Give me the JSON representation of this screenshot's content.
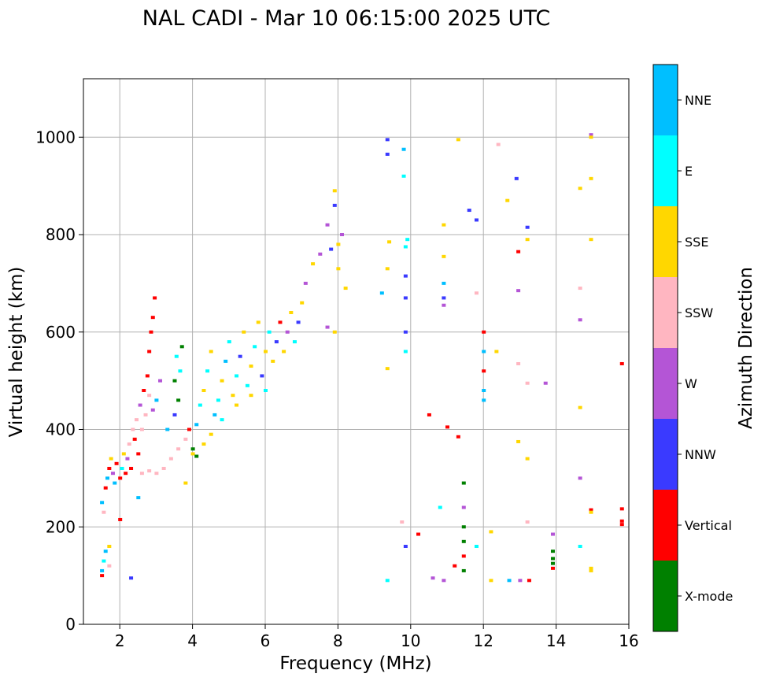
{
  "chart_data": {
    "type": "scatter",
    "title": "NAL CADI - Mar 10 06:15:00 2025 UTC",
    "xlabel": "Frequency (MHz)",
    "ylabel": "Virtual height (km)",
    "xlim": [
      1.0,
      16.0
    ],
    "ylim": [
      0,
      1120
    ],
    "xticks": [
      2,
      4,
      6,
      8,
      10,
      12,
      14,
      16
    ],
    "yticks": [
      0,
      200,
      400,
      600,
      800,
      1000
    ],
    "grid": true,
    "colorbar": {
      "label": "Azimuth Direction",
      "categories": [
        {
          "name": "X-mode",
          "color": "#008000"
        },
        {
          "name": "Vertical",
          "color": "#ff0000"
        },
        {
          "name": "NNW",
          "color": "#3a3aff"
        },
        {
          "name": "W",
          "color": "#b455d6"
        },
        {
          "name": "SSW",
          "color": "#ffb6c1"
        },
        {
          "name": "SSE",
          "color": "#ffd700"
        },
        {
          "name": "E",
          "color": "#00ffff"
        },
        {
          "name": "NNE",
          "color": "#00bfff"
        }
      ]
    },
    "points": [
      {
        "f": 1.5,
        "h": 100,
        "c": "Vertical"
      },
      {
        "f": 1.5,
        "h": 110,
        "c": "NNE"
      },
      {
        "f": 1.55,
        "h": 130,
        "c": "E"
      },
      {
        "f": 1.6,
        "h": 150,
        "c": "NNE"
      },
      {
        "f": 1.7,
        "h": 160,
        "c": "SSE"
      },
      {
        "f": 1.7,
        "h": 120,
        "c": "SSW"
      },
      {
        "f": 1.5,
        "h": 250,
        "c": "NNE"
      },
      {
        "f": 1.55,
        "h": 230,
        "c": "SSW"
      },
      {
        "f": 1.6,
        "h": 280,
        "c": "Vertical"
      },
      {
        "f": 1.65,
        "h": 300,
        "c": "NNE"
      },
      {
        "f": 1.7,
        "h": 320,
        "c": "Vertical"
      },
      {
        "f": 1.75,
        "h": 340,
        "c": "SSE"
      },
      {
        "f": 1.8,
        "h": 310,
        "c": "W"
      },
      {
        "f": 1.85,
        "h": 290,
        "c": "NNE"
      },
      {
        "f": 1.9,
        "h": 330,
        "c": "Vertical"
      },
      {
        "f": 2.0,
        "h": 300,
        "c": "Vertical"
      },
      {
        "f": 2.05,
        "h": 320,
        "c": "E"
      },
      {
        "f": 2.1,
        "h": 350,
        "c": "SSE"
      },
      {
        "f": 2.15,
        "h": 310,
        "c": "Vertical"
      },
      {
        "f": 2.2,
        "h": 340,
        "c": "W"
      },
      {
        "f": 2.25,
        "h": 370,
        "c": "SSW"
      },
      {
        "f": 2.3,
        "h": 320,
        "c": "Vertical"
      },
      {
        "f": 2.35,
        "h": 400,
        "c": "SSW"
      },
      {
        "f": 2.4,
        "h": 380,
        "c": "Vertical"
      },
      {
        "f": 2.45,
        "h": 420,
        "c": "SSW"
      },
      {
        "f": 2.5,
        "h": 350,
        "c": "Vertical"
      },
      {
        "f": 2.55,
        "h": 450,
        "c": "W"
      },
      {
        "f": 2.6,
        "h": 400,
        "c": "SSW"
      },
      {
        "f": 2.65,
        "h": 480,
        "c": "Vertical"
      },
      {
        "f": 2.7,
        "h": 430,
        "c": "SSW"
      },
      {
        "f": 2.75,
        "h": 510,
        "c": "Vertical"
      },
      {
        "f": 2.8,
        "h": 560,
        "c": "Vertical"
      },
      {
        "f": 2.85,
        "h": 600,
        "c": "Vertical"
      },
      {
        "f": 2.9,
        "h": 630,
        "c": "Vertical"
      },
      {
        "f": 2.95,
        "h": 670,
        "c": "Vertical"
      },
      {
        "f": 2.8,
        "h": 470,
        "c": "SSW"
      },
      {
        "f": 2.9,
        "h": 440,
        "c": "W"
      },
      {
        "f": 3.0,
        "h": 460,
        "c": "NNE"
      },
      {
        "f": 3.1,
        "h": 500,
        "c": "W"
      },
      {
        "f": 3.0,
        "h": 310,
        "c": "SSW"
      },
      {
        "f": 3.2,
        "h": 320,
        "c": "SSW"
      },
      {
        "f": 3.4,
        "h": 340,
        "c": "SSW"
      },
      {
        "f": 3.6,
        "h": 360,
        "c": "SSW"
      },
      {
        "f": 3.8,
        "h": 380,
        "c": "SSW"
      },
      {
        "f": 2.6,
        "h": 310,
        "c": "SSW"
      },
      {
        "f": 2.8,
        "h": 315,
        "c": "SSW"
      },
      {
        "f": 3.3,
        "h": 400,
        "c": "NNE"
      },
      {
        "f": 3.5,
        "h": 430,
        "c": "NNW"
      },
      {
        "f": 3.6,
        "h": 460,
        "c": "X-mode"
      },
      {
        "f": 3.5,
        "h": 500,
        "c": "X-mode"
      },
      {
        "f": 3.7,
        "h": 570,
        "c": "X-mode"
      },
      {
        "f": 3.65,
        "h": 520,
        "c": "E"
      },
      {
        "f": 3.55,
        "h": 550,
        "c": "E"
      },
      {
        "f": 3.8,
        "h": 290,
        "c": "SSE"
      },
      {
        "f": 3.9,
        "h": 400,
        "c": "Vertical"
      },
      {
        "f": 4.0,
        "h": 360,
        "c": "X-mode"
      },
      {
        "f": 4.1,
        "h": 410,
        "c": "NNE"
      },
      {
        "f": 4.2,
        "h": 450,
        "c": "E"
      },
      {
        "f": 4.3,
        "h": 480,
        "c": "SSE"
      },
      {
        "f": 4.4,
        "h": 520,
        "c": "E"
      },
      {
        "f": 4.5,
        "h": 560,
        "c": "SSE"
      },
      {
        "f": 4.6,
        "h": 430,
        "c": "NNE"
      },
      {
        "f": 4.7,
        "h": 460,
        "c": "E"
      },
      {
        "f": 4.8,
        "h": 500,
        "c": "SSE"
      },
      {
        "f": 4.9,
        "h": 540,
        "c": "NNE"
      },
      {
        "f": 5.0,
        "h": 580,
        "c": "E"
      },
      {
        "f": 5.1,
        "h": 470,
        "c": "SSE"
      },
      {
        "f": 5.2,
        "h": 510,
        "c": "E"
      },
      {
        "f": 5.3,
        "h": 550,
        "c": "NNW"
      },
      {
        "f": 5.4,
        "h": 600,
        "c": "SSE"
      },
      {
        "f": 5.5,
        "h": 490,
        "c": "E"
      },
      {
        "f": 5.6,
        "h": 530,
        "c": "SSE"
      },
      {
        "f": 5.7,
        "h": 570,
        "c": "E"
      },
      {
        "f": 5.8,
        "h": 620,
        "c": "SSE"
      },
      {
        "f": 5.9,
        "h": 510,
        "c": "NNW"
      },
      {
        "f": 6.0,
        "h": 560,
        "c": "SSE"
      },
      {
        "f": 6.1,
        "h": 600,
        "c": "E"
      },
      {
        "f": 6.2,
        "h": 540,
        "c": "SSE"
      },
      {
        "f": 6.3,
        "h": 580,
        "c": "NNW"
      },
      {
        "f": 6.4,
        "h": 620,
        "c": "Vertical"
      },
      {
        "f": 6.5,
        "h": 560,
        "c": "SSE"
      },
      {
        "f": 6.6,
        "h": 600,
        "c": "W"
      },
      {
        "f": 6.7,
        "h": 640,
        "c": "SSE"
      },
      {
        "f": 6.8,
        "h": 580,
        "c": "E"
      },
      {
        "f": 6.9,
        "h": 620,
        "c": "NNW"
      },
      {
        "f": 7.0,
        "h": 660,
        "c": "SSE"
      },
      {
        "f": 7.1,
        "h": 700,
        "c": "W"
      },
      {
        "f": 7.3,
        "h": 740,
        "c": "SSE"
      },
      {
        "f": 7.5,
        "h": 760,
        "c": "W"
      },
      {
        "f": 7.7,
        "h": 820,
        "c": "W"
      },
      {
        "f": 7.8,
        "h": 770,
        "c": "NNW"
      },
      {
        "f": 7.9,
        "h": 860,
        "c": "NNW"
      },
      {
        "f": 7.9,
        "h": 890,
        "c": "SSE"
      },
      {
        "f": 8.0,
        "h": 780,
        "c": "SSE"
      },
      {
        "f": 8.1,
        "h": 800,
        "c": "W"
      },
      {
        "f": 8.0,
        "h": 730,
        "c": "SSE"
      },
      {
        "f": 8.2,
        "h": 690,
        "c": "SSE"
      },
      {
        "f": 7.9,
        "h": 600,
        "c": "SSE"
      },
      {
        "f": 7.7,
        "h": 610,
        "c": "W"
      },
      {
        "f": 4.5,
        "h": 390,
        "c": "SSE"
      },
      {
        "f": 4.8,
        "h": 420,
        "c": "E"
      },
      {
        "f": 5.2,
        "h": 450,
        "c": "SSE"
      },
      {
        "f": 5.6,
        "h": 470,
        "c": "SSE"
      },
      {
        "f": 6.0,
        "h": 480,
        "c": "E"
      },
      {
        "f": 4.3,
        "h": 370,
        "c": "SSE"
      },
      {
        "f": 4.0,
        "h": 350,
        "c": "SSE"
      },
      {
        "f": 4.1,
        "h": 345,
        "c": "X-mode"
      },
      {
        "f": 2.3,
        "h": 95,
        "c": "NNW"
      },
      {
        "f": 2.5,
        "h": 260,
        "c": "NNE"
      },
      {
        "f": 2.0,
        "h": 215,
        "c": "Vertical"
      },
      {
        "f": 9.2,
        "h": 680,
        "c": "NNE"
      },
      {
        "f": 9.35,
        "h": 995,
        "c": "NNW"
      },
      {
        "f": 9.35,
        "h": 965,
        "c": "NNW"
      },
      {
        "f": 9.4,
        "h": 785,
        "c": "SSE"
      },
      {
        "f": 9.35,
        "h": 730,
        "c": "SSE"
      },
      {
        "f": 9.35,
        "h": 525,
        "c": "SSE"
      },
      {
        "f": 9.35,
        "h": 90,
        "c": "E"
      },
      {
        "f": 9.8,
        "h": 975,
        "c": "NNE"
      },
      {
        "f": 9.8,
        "h": 920,
        "c": "E"
      },
      {
        "f": 9.9,
        "h": 790,
        "c": "E"
      },
      {
        "f": 9.85,
        "h": 775,
        "c": "E"
      },
      {
        "f": 9.85,
        "h": 715,
        "c": "NNW"
      },
      {
        "f": 9.85,
        "h": 670,
        "c": "NNW"
      },
      {
        "f": 9.85,
        "h": 600,
        "c": "NNW"
      },
      {
        "f": 9.85,
        "h": 560,
        "c": "E"
      },
      {
        "f": 9.75,
        "h": 210,
        "c": "SSW"
      },
      {
        "f": 9.85,
        "h": 160,
        "c": "NNW"
      },
      {
        "f": 10.2,
        "h": 185,
        "c": "Vertical"
      },
      {
        "f": 10.5,
        "h": 430,
        "c": "Vertical"
      },
      {
        "f": 10.6,
        "h": 95,
        "c": "W"
      },
      {
        "f": 10.8,
        "h": 240,
        "c": "E"
      },
      {
        "f": 10.9,
        "h": 90,
        "c": "W"
      },
      {
        "f": 10.9,
        "h": 820,
        "c": "SSE"
      },
      {
        "f": 10.9,
        "h": 755,
        "c": "SSE"
      },
      {
        "f": 10.9,
        "h": 700,
        "c": "NNE"
      },
      {
        "f": 10.9,
        "h": 670,
        "c": "NNW"
      },
      {
        "f": 10.9,
        "h": 655,
        "c": "W"
      },
      {
        "f": 11.0,
        "h": 405,
        "c": "Vertical"
      },
      {
        "f": 11.2,
        "h": 120,
        "c": "Vertical"
      },
      {
        "f": 11.3,
        "h": 995,
        "c": "SSE"
      },
      {
        "f": 11.3,
        "h": 385,
        "c": "Vertical"
      },
      {
        "f": 11.45,
        "h": 290,
        "c": "X-mode"
      },
      {
        "f": 11.45,
        "h": 240,
        "c": "W"
      },
      {
        "f": 11.45,
        "h": 200,
        "c": "X-mode"
      },
      {
        "f": 11.45,
        "h": 170,
        "c": "X-mode"
      },
      {
        "f": 11.45,
        "h": 140,
        "c": "Vertical"
      },
      {
        "f": 11.45,
        "h": 110,
        "c": "X-mode"
      },
      {
        "f": 11.6,
        "h": 850,
        "c": "NNW"
      },
      {
        "f": 11.8,
        "h": 830,
        "c": "NNW"
      },
      {
        "f": 11.8,
        "h": 680,
        "c": "SSW"
      },
      {
        "f": 11.8,
        "h": 160,
        "c": "E"
      },
      {
        "f": 12.0,
        "h": 600,
        "c": "Vertical"
      },
      {
        "f": 12.0,
        "h": 560,
        "c": "NNE"
      },
      {
        "f": 12.0,
        "h": 520,
        "c": "Vertical"
      },
      {
        "f": 12.0,
        "h": 480,
        "c": "NNE"
      },
      {
        "f": 12.0,
        "h": 460,
        "c": "NNE"
      },
      {
        "f": 12.2,
        "h": 190,
        "c": "SSE"
      },
      {
        "f": 12.2,
        "h": 90,
        "c": "SSE"
      },
      {
        "f": 12.35,
        "h": 560,
        "c": "SSE"
      },
      {
        "f": 12.4,
        "h": 985,
        "c": "SSW"
      },
      {
        "f": 12.65,
        "h": 870,
        "c": "SSE"
      },
      {
        "f": 12.7,
        "h": 90,
        "c": "NNE"
      },
      {
        "f": 12.9,
        "h": 915,
        "c": "NNW"
      },
      {
        "f": 12.95,
        "h": 765,
        "c": "Vertical"
      },
      {
        "f": 12.95,
        "h": 685,
        "c": "W"
      },
      {
        "f": 12.95,
        "h": 535,
        "c": "SSW"
      },
      {
        "f": 12.95,
        "h": 375,
        "c": "SSE"
      },
      {
        "f": 13.0,
        "h": 90,
        "c": "W"
      },
      {
        "f": 13.2,
        "h": 815,
        "c": "NNW"
      },
      {
        "f": 13.2,
        "h": 790,
        "c": "SSE"
      },
      {
        "f": 13.2,
        "h": 495,
        "c": "SSW"
      },
      {
        "f": 13.2,
        "h": 340,
        "c": "SSE"
      },
      {
        "f": 13.2,
        "h": 210,
        "c": "SSW"
      },
      {
        "f": 13.25,
        "h": 90,
        "c": "Vertical"
      },
      {
        "f": 13.7,
        "h": 495,
        "c": "W"
      },
      {
        "f": 13.9,
        "h": 185,
        "c": "W"
      },
      {
        "f": 13.9,
        "h": 150,
        "c": "X-mode"
      },
      {
        "f": 13.9,
        "h": 135,
        "c": "X-mode"
      },
      {
        "f": 13.9,
        "h": 125,
        "c": "X-mode"
      },
      {
        "f": 13.9,
        "h": 115,
        "c": "Vertical"
      },
      {
        "f": 14.65,
        "h": 895,
        "c": "SSE"
      },
      {
        "f": 14.65,
        "h": 690,
        "c": "SSW"
      },
      {
        "f": 14.65,
        "h": 625,
        "c": "W"
      },
      {
        "f": 14.65,
        "h": 445,
        "c": "SSE"
      },
      {
        "f": 14.65,
        "h": 300,
        "c": "W"
      },
      {
        "f": 14.65,
        "h": 160,
        "c": "E"
      },
      {
        "f": 14.95,
        "h": 1005,
        "c": "W"
      },
      {
        "f": 14.95,
        "h": 1000,
        "c": "SSE"
      },
      {
        "f": 14.95,
        "h": 915,
        "c": "SSE"
      },
      {
        "f": 14.95,
        "h": 790,
        "c": "SSE"
      },
      {
        "f": 14.95,
        "h": 235,
        "c": "Vertical"
      },
      {
        "f": 14.95,
        "h": 230,
        "c": "SSE"
      },
      {
        "f": 14.95,
        "h": 115,
        "c": "SSE"
      },
      {
        "f": 14.95,
        "h": 110,
        "c": "SSE"
      },
      {
        "f": 15.8,
        "h": 535,
        "c": "Vertical"
      },
      {
        "f": 15.8,
        "h": 237,
        "c": "Vertical"
      },
      {
        "f": 15.8,
        "h": 212,
        "c": "Vertical"
      },
      {
        "f": 15.8,
        "h": 205,
        "c": "Vertical"
      }
    ]
  }
}
